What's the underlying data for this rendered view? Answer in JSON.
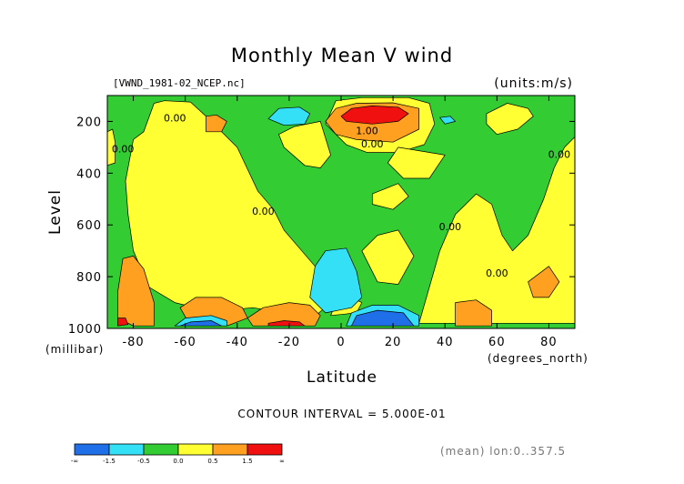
{
  "chart_data": {
    "type": "heatmap",
    "title": "Monthly Mean V wind",
    "file_label": "[VWND_1981-02_NCEP.nc]",
    "units_label": "(units:m/s)",
    "xlabel": "Latitude",
    "x_units_label": "(degrees_north)",
    "ylabel": "Level",
    "y_units_label": "(millibar)",
    "xlim": [
      -90,
      90
    ],
    "ylim": [
      1000,
      100
    ],
    "x_ticks": [
      -80,
      -60,
      -40,
      -20,
      0,
      20,
      40,
      60,
      80
    ],
    "x_tick_labels": [
      "-80",
      "-60",
      "-40",
      "-20",
      "0",
      "20",
      "40",
      "60",
      "80"
    ],
    "y_ticks": [
      200,
      400,
      600,
      800,
      1000
    ],
    "y_tick_labels": [
      "200",
      "400",
      "600",
      "800",
      "1000"
    ],
    "contour_interval_label": "CONTOUR INTERVAL = 5.000E-01",
    "mean_note": "(mean) lon:0..357.5",
    "colorbar": {
      "colors": [
        "#1f6fe8",
        "#33e0f5",
        "#33cc33",
        "#ffff33",
        "#ffa020",
        "#f01010"
      ],
      "tick_labels": [
        "-∞",
        "-1.5",
        "-0.5",
        "0.0",
        "0.5",
        "1.5",
        "∞"
      ]
    },
    "contour_labels": [
      {
        "text": "1.00",
        "lat": 10,
        "lev": 250
      },
      {
        "text": "0.00",
        "lat": 12,
        "lev": 300
      },
      {
        "text": "0.00",
        "lat": -64,
        "lev": 200
      },
      {
        "text": "0.00",
        "lat": -84,
        "lev": 320
      },
      {
        "text": "0.00",
        "lat": -30,
        "lev": 560
      },
      {
        "text": "0.00",
        "lat": 42,
        "lev": 620
      },
      {
        "text": "0.00",
        "lat": 60,
        "lev": 800
      },
      {
        "text": "0.00",
        "lat": 84,
        "lev": 340
      }
    ],
    "regions": [
      {
        "color": "#33cc33",
        "pts": [
          [
            -90,
            100
          ],
          [
            90,
            100
          ],
          [
            90,
            1000
          ],
          [
            -90,
            1000
          ]
        ]
      },
      {
        "color": "#ffff33",
        "pts": [
          [
            -80,
            270
          ],
          [
            -76,
            240
          ],
          [
            -72,
            130
          ],
          [
            -68,
            120
          ],
          [
            -58,
            125
          ],
          [
            -52,
            180
          ],
          [
            -46,
            240
          ],
          [
            -40,
            300
          ],
          [
            -32,
            470
          ],
          [
            -26,
            540
          ],
          [
            -22,
            620
          ],
          [
            -16,
            690
          ],
          [
            -10,
            760
          ],
          [
            -6,
            820
          ],
          [
            -4,
            900
          ],
          [
            -12,
            970
          ],
          [
            -22,
            940
          ],
          [
            -34,
            920
          ],
          [
            -44,
            930
          ],
          [
            -56,
            920
          ],
          [
            -64,
            900
          ],
          [
            -74,
            840
          ],
          [
            -80,
            700
          ],
          [
            -82,
            560
          ],
          [
            -83,
            430
          ]
        ]
      },
      {
        "color": "#ffff33",
        "pts": [
          [
            -90,
            240
          ],
          [
            -88,
            230
          ],
          [
            -87,
            280
          ],
          [
            -87,
            360
          ],
          [
            -90,
            370
          ]
        ]
      },
      {
        "color": "#ffff33",
        "pts": [
          [
            -24,
            250
          ],
          [
            -18,
            220
          ],
          [
            -8,
            200
          ],
          [
            -4,
            330
          ],
          [
            -8,
            380
          ],
          [
            -14,
            370
          ],
          [
            -22,
            300
          ]
        ]
      },
      {
        "color": "#ffff33",
        "pts": [
          [
            -6,
            210
          ],
          [
            -2,
            120
          ],
          [
            8,
            108
          ],
          [
            26,
            108
          ],
          [
            34,
            130
          ],
          [
            36,
            210
          ],
          [
            32,
            290
          ],
          [
            22,
            320
          ],
          [
            10,
            320
          ],
          [
            2,
            290
          ]
        ]
      },
      {
        "color": "#ffff33",
        "pts": [
          [
            22,
            300
          ],
          [
            40,
            330
          ],
          [
            34,
            420
          ],
          [
            24,
            420
          ],
          [
            18,
            360
          ]
        ]
      },
      {
        "color": "#ffff33",
        "pts": [
          [
            12,
            480
          ],
          [
            22,
            440
          ],
          [
            26,
            490
          ],
          [
            20,
            540
          ],
          [
            12,
            520
          ]
        ]
      },
      {
        "color": "#ffff33",
        "pts": [
          [
            8,
            700
          ],
          [
            14,
            640
          ],
          [
            22,
            620
          ],
          [
            28,
            720
          ],
          [
            22,
            830
          ],
          [
            14,
            820
          ]
        ]
      },
      {
        "color": "#ffff33",
        "pts": [
          [
            56,
            170
          ],
          [
            64,
            130
          ],
          [
            72,
            150
          ],
          [
            74,
            180
          ],
          [
            68,
            230
          ],
          [
            60,
            250
          ],
          [
            56,
            210
          ]
        ]
      },
      {
        "color": "#ffff33",
        "pts": [
          [
            30,
            980
          ],
          [
            34,
            840
          ],
          [
            38,
            700
          ],
          [
            44,
            560
          ],
          [
            52,
            480
          ],
          [
            58,
            520
          ],
          [
            62,
            640
          ],
          [
            66,
            700
          ],
          [
            72,
            640
          ],
          [
            78,
            500
          ],
          [
            82,
            380
          ],
          [
            86,
            300
          ],
          [
            90,
            260
          ],
          [
            90,
            980
          ]
        ]
      },
      {
        "color": "#ffff33",
        "pts": [
          [
            -4,
            950
          ],
          [
            -2,
            900
          ],
          [
            4,
            880
          ],
          [
            8,
            900
          ],
          [
            6,
            940
          ]
        ]
      },
      {
        "color": "#ffa020",
        "pts": [
          [
            -84,
            730
          ],
          [
            -80,
            720
          ],
          [
            -76,
            770
          ],
          [
            -72,
            900
          ],
          [
            -72,
            990
          ],
          [
            -80,
            990
          ],
          [
            -86,
            960
          ],
          [
            -86,
            860
          ]
        ]
      },
      {
        "color": "#ffa020",
        "pts": [
          [
            -62,
            920
          ],
          [
            -56,
            880
          ],
          [
            -46,
            880
          ],
          [
            -38,
            920
          ],
          [
            -36,
            960
          ],
          [
            -44,
            990
          ],
          [
            -58,
            990
          ]
        ]
      },
      {
        "color": "#ffa020",
        "pts": [
          [
            -36,
            960
          ],
          [
            -30,
            920
          ],
          [
            -20,
            900
          ],
          [
            -12,
            910
          ],
          [
            -8,
            950
          ],
          [
            -10,
            990
          ],
          [
            -34,
            990
          ]
        ]
      },
      {
        "color": "#ffa020",
        "pts": [
          [
            -52,
            180
          ],
          [
            -48,
            175
          ],
          [
            -44,
            200
          ],
          [
            -46,
            240
          ],
          [
            -52,
            240
          ]
        ]
      },
      {
        "color": "#ffa020",
        "pts": [
          [
            -6,
            200
          ],
          [
            -2,
            150
          ],
          [
            6,
            130
          ],
          [
            20,
            128
          ],
          [
            30,
            150
          ],
          [
            30,
            230
          ],
          [
            20,
            280
          ],
          [
            6,
            270
          ],
          [
            -2,
            250
          ]
        ]
      },
      {
        "color": "#ffa020",
        "pts": [
          [
            44,
            900
          ],
          [
            52,
            890
          ],
          [
            58,
            930
          ],
          [
            58,
            990
          ],
          [
            44,
            990
          ]
        ]
      },
      {
        "color": "#ffa020",
        "pts": [
          [
            72,
            820
          ],
          [
            80,
            760
          ],
          [
            84,
            820
          ],
          [
            80,
            880
          ],
          [
            74,
            880
          ]
        ]
      },
      {
        "color": "#f01010",
        "pts": [
          [
            0,
            180
          ],
          [
            4,
            150
          ],
          [
            12,
            140
          ],
          [
            22,
            145
          ],
          [
            26,
            170
          ],
          [
            22,
            200
          ],
          [
            12,
            210
          ],
          [
            2,
            200
          ]
        ]
      },
      {
        "color": "#f01010",
        "pts": [
          [
            -86,
            960
          ],
          [
            -83,
            960
          ],
          [
            -82,
            985
          ],
          [
            -86,
            990
          ]
        ]
      },
      {
        "color": "#f01010",
        "pts": [
          [
            -28,
            980
          ],
          [
            -22,
            970
          ],
          [
            -16,
            975
          ],
          [
            -14,
            990
          ],
          [
            -28,
            990
          ]
        ]
      },
      {
        "color": "#33e0f5",
        "pts": [
          [
            -28,
            190
          ],
          [
            -24,
            150
          ],
          [
            -16,
            145
          ],
          [
            -12,
            170
          ],
          [
            -14,
            210
          ],
          [
            -22,
            215
          ]
        ]
      },
      {
        "color": "#33e0f5",
        "pts": [
          [
            38,
            185
          ],
          [
            42,
            180
          ],
          [
            44,
            200
          ],
          [
            40,
            210
          ]
        ]
      },
      {
        "color": "#33e0f5",
        "pts": [
          [
            -12,
            880
          ],
          [
            -10,
            760
          ],
          [
            -6,
            700
          ],
          [
            2,
            690
          ],
          [
            6,
            780
          ],
          [
            8,
            880
          ],
          [
            4,
            920
          ],
          [
            -6,
            940
          ]
        ]
      },
      {
        "color": "#33e0f5",
        "pts": [
          [
            2,
            990
          ],
          [
            4,
            940
          ],
          [
            12,
            910
          ],
          [
            22,
            910
          ],
          [
            30,
            950
          ],
          [
            30,
            990
          ]
        ]
      },
      {
        "color": "#33e0f5",
        "pts": [
          [
            -64,
            990
          ],
          [
            -60,
            960
          ],
          [
            -50,
            950
          ],
          [
            -44,
            970
          ],
          [
            -44,
            990
          ]
        ]
      },
      {
        "color": "#1f6fe8",
        "pts": [
          [
            4,
            990
          ],
          [
            6,
            950
          ],
          [
            14,
            930
          ],
          [
            24,
            940
          ],
          [
            28,
            990
          ]
        ]
      },
      {
        "color": "#1f6fe8",
        "pts": [
          [
            -62,
            990
          ],
          [
            -58,
            975
          ],
          [
            -50,
            970
          ],
          [
            -46,
            990
          ]
        ]
      }
    ]
  }
}
